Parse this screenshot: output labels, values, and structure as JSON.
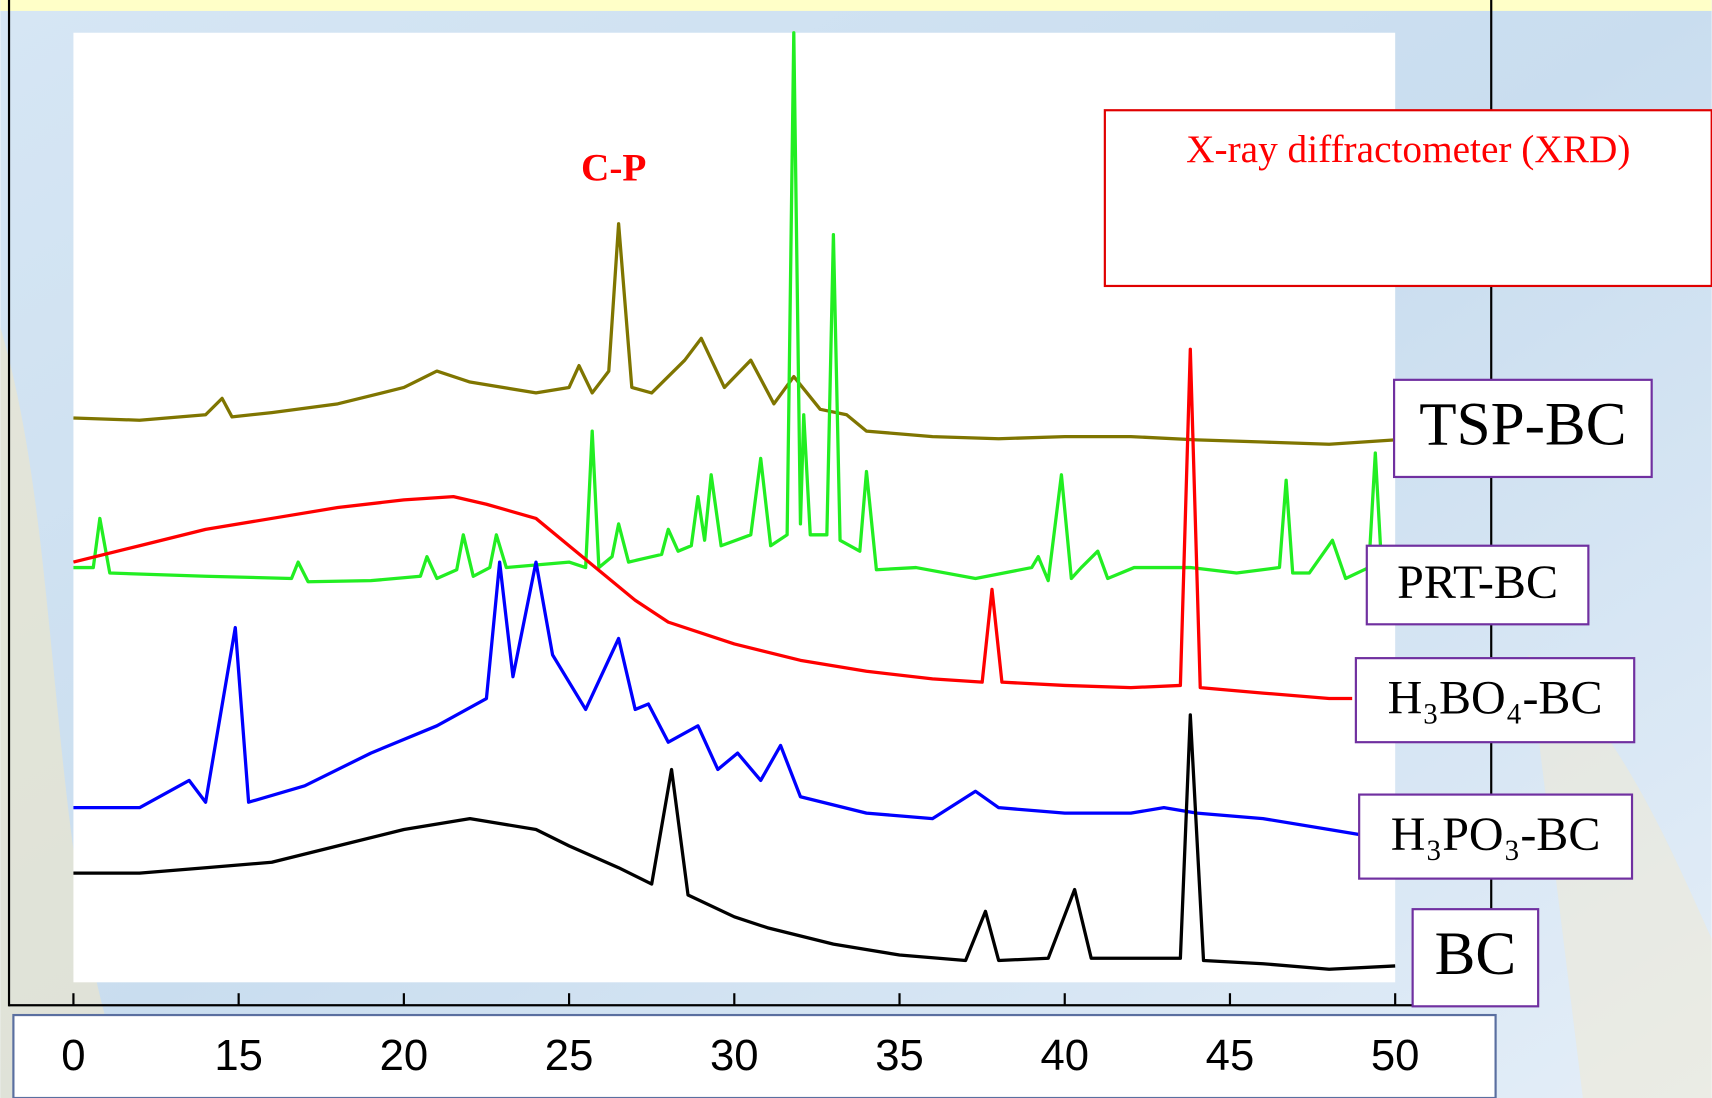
{
  "chart_data": {
    "type": "line",
    "annotations": [
      "C-P",
      "X-ray diffractometer (XRD)"
    ],
    "xlim": [
      10,
      50
    ],
    "ylim": [
      0,
      870
    ],
    "xticks": [
      {
        "value": 10,
        "label": "0"
      },
      15,
      20,
      25,
      30,
      35,
      40,
      45,
      50
    ],
    "series": [
      {
        "name": "TSP-BC",
        "color": "#7f7500",
        "x": [
          10,
          12,
          14,
          14.5,
          14.8,
          16,
          18,
          20,
          21,
          22,
          24,
          25,
          25.3,
          25.7,
          26.2,
          26.5,
          26.9,
          27.5,
          28.5,
          29,
          29.7,
          30.5,
          31.2,
          31.8,
          32.2,
          32.6,
          33.4,
          34,
          36,
          38,
          40,
          42,
          44,
          46,
          48,
          50
        ],
        "values": [
          517,
          515,
          520,
          535,
          518,
          522,
          530,
          545,
          560,
          550,
          540,
          545,
          565,
          540,
          560,
          695,
          545,
          540,
          570,
          590,
          545,
          570,
          530,
          555,
          540,
          525,
          520,
          505,
          500,
          498,
          500,
          500,
          497,
          495,
          493,
          497
        ]
      },
      {
        "name": "PRT-BC",
        "color": "#22ee22",
        "x": [
          10,
          10.6,
          10.8,
          11.1,
          14,
          16.6,
          16.8,
          17.1,
          19,
          20.5,
          20.7,
          21,
          21.6,
          21.8,
          22.1,
          22.6,
          22.8,
          23.1,
          25,
          25.5,
          25.7,
          25.9,
          26.3,
          26.5,
          26.8,
          27.8,
          28,
          28.3,
          28.7,
          28.9,
          29.1,
          29.3,
          29.6,
          30.5,
          30.8,
          31.1,
          31.6,
          31.8,
          32,
          32.1,
          32.3,
          32.8,
          33,
          33.2,
          33.8,
          34,
          34.3,
          35.5,
          37.3,
          39,
          39.2,
          39.5,
          39.9,
          40.2,
          40.5,
          41,
          41.3,
          42.1,
          43.8,
          45.2,
          46.5,
          46.7,
          46.9,
          47.4,
          48.1,
          48.5,
          49.2,
          49.4,
          49.6,
          49.7
        ],
        "values": [
          380,
          380,
          425,
          375,
          372,
          370,
          385,
          367,
          368,
          372,
          390,
          370,
          378,
          410,
          372,
          380,
          410,
          380,
          385,
          380,
          505,
          380,
          390,
          420,
          385,
          392,
          415,
          395,
          400,
          445,
          405,
          465,
          400,
          410,
          480,
          400,
          410,
          870,
          420,
          520,
          410,
          410,
          685,
          405,
          395,
          468,
          378,
          380,
          370,
          380,
          390,
          368,
          465,
          370,
          380,
          395,
          370,
          380,
          380,
          375,
          380,
          460,
          375,
          375,
          405,
          370,
          380,
          485,
          375,
          360
        ]
      },
      {
        "name": "H₃BO₄-BC",
        "color": "#ff0000",
        "x": [
          10,
          12,
          14,
          16,
          18,
          20,
          21.5,
          22.5,
          24,
          25,
          26,
          27,
          28,
          30,
          32,
          34,
          36,
          37.5,
          37.8,
          38.1,
          40,
          42,
          43.5,
          43.8,
          44.1,
          46,
          48,
          48.7
        ],
        "values": [
          385,
          400,
          415,
          425,
          435,
          442,
          445,
          438,
          425,
          400,
          375,
          350,
          330,
          310,
          295,
          285,
          278,
          275,
          360,
          275,
          272,
          270,
          272,
          580,
          270,
          265,
          260,
          260
        ]
      },
      {
        "name": "H₃PO₃-BC",
        "color": "#0000ff",
        "x": [
          10,
          12,
          13.5,
          14,
          14.9,
          15.3,
          17,
          19,
          21,
          22.5,
          22.9,
          23.3,
          24,
          24.5,
          25.5,
          26.5,
          27,
          27.4,
          28,
          28.9,
          29.5,
          30.1,
          30.8,
          31.4,
          32,
          34,
          36,
          37.3,
          38,
          40,
          42,
          43,
          44,
          46,
          48,
          49
        ],
        "values": [
          160,
          160,
          185,
          165,
          325,
          165,
          180,
          210,
          235,
          260,
          385,
          280,
          385,
          300,
          250,
          315,
          250,
          255,
          220,
          235,
          195,
          210,
          185,
          217,
          170,
          155,
          150,
          175,
          160,
          155,
          155,
          160,
          155,
          150,
          140,
          135
        ]
      },
      {
        "name": "BC",
        "color": "#000000",
        "x": [
          10,
          12,
          14,
          16,
          18,
          20,
          22,
          24,
          25,
          26.5,
          27.5,
          28.1,
          28.6,
          30,
          31,
          33,
          35,
          37,
          37.6,
          38,
          39.5,
          40.3,
          40.8,
          43.5,
          43.8,
          44.2,
          46,
          48,
          50
        ],
        "values": [
          100,
          100,
          105,
          110,
          125,
          140,
          150,
          140,
          125,
          105,
          90,
          195,
          80,
          60,
          50,
          35,
          25,
          20,
          65,
          20,
          22,
          85,
          22,
          22,
          245,
          20,
          17,
          12,
          15
        ]
      }
    ]
  }
}
